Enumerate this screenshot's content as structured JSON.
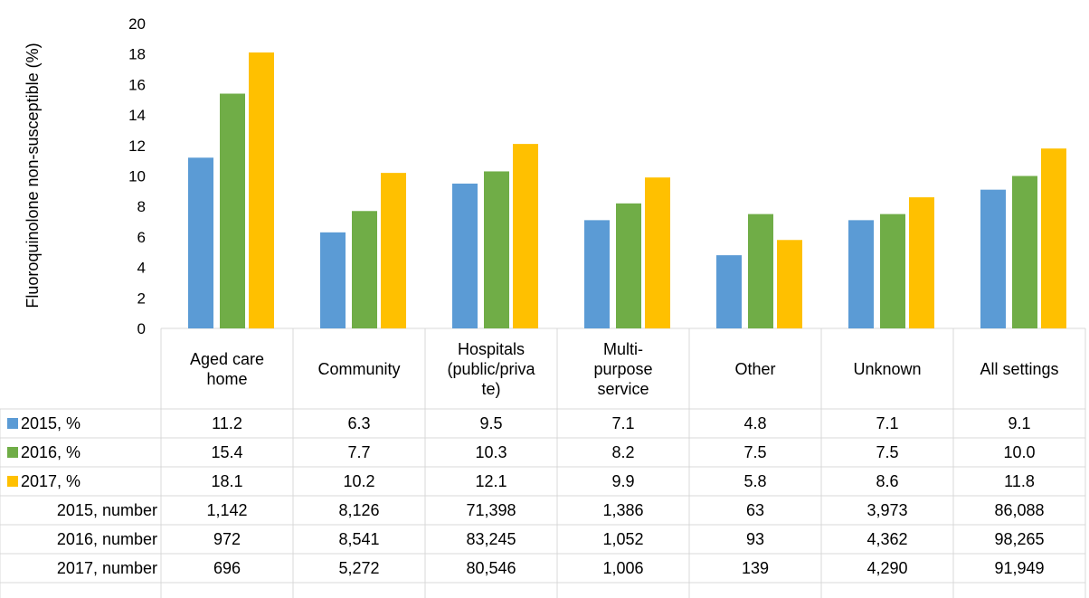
{
  "chart_data": {
    "type": "bar",
    "title": "",
    "xlabel": "",
    "ylabel": "Fluoroquinolone non-susceptible (%)",
    "ylim": [
      0,
      20
    ],
    "yticks": [
      0,
      2,
      4,
      6,
      8,
      10,
      12,
      14,
      16,
      18,
      20
    ],
    "grid": false,
    "legend": "data-table-left",
    "categories": [
      [
        "Aged care",
        "home"
      ],
      [
        "Community"
      ],
      [
        "Hospitals",
        "(public/priva",
        "te)"
      ],
      [
        "Multi-",
        "purpose",
        "service"
      ],
      [
        "Other"
      ],
      [
        "Unknown"
      ],
      [
        "All settings"
      ]
    ],
    "series": [
      {
        "name": "2015, %",
        "color": "#5b9bd5",
        "values": [
          11.2,
          6.3,
          9.5,
          7.1,
          4.8,
          7.1,
          9.1
        ],
        "labels": [
          "11.2",
          "6.3",
          "9.5",
          "7.1",
          "4.8",
          "7.1",
          "9.1"
        ]
      },
      {
        "name": "2016, %",
        "color": "#70ad47",
        "values": [
          15.4,
          7.7,
          10.3,
          8.2,
          7.5,
          7.5,
          10.0
        ],
        "labels": [
          "15.4",
          "7.7",
          "10.3",
          "8.2",
          "7.5",
          "7.5",
          "10.0"
        ]
      },
      {
        "name": "2017, %",
        "color": "#ffc000",
        "values": [
          18.1,
          10.2,
          12.1,
          9.9,
          5.8,
          8.6,
          11.8
        ],
        "labels": [
          "18.1",
          "10.2",
          "12.1",
          "9.9",
          "5.8",
          "8.6",
          "11.8"
        ]
      }
    ],
    "table_rows": [
      {
        "name": "2015, number",
        "values": [
          "1,142",
          "8,126",
          "71,398",
          "1,386",
          "63",
          "3,973",
          "86,088"
        ]
      },
      {
        "name": "2016, number",
        "values": [
          "972",
          "8,541",
          "83,245",
          "1,052",
          "93",
          "4,362",
          "98,265"
        ]
      },
      {
        "name": "2017, number",
        "values": [
          "696",
          "5,272",
          "80,546",
          "1,006",
          "139",
          "4,290",
          "91,949"
        ]
      }
    ]
  }
}
